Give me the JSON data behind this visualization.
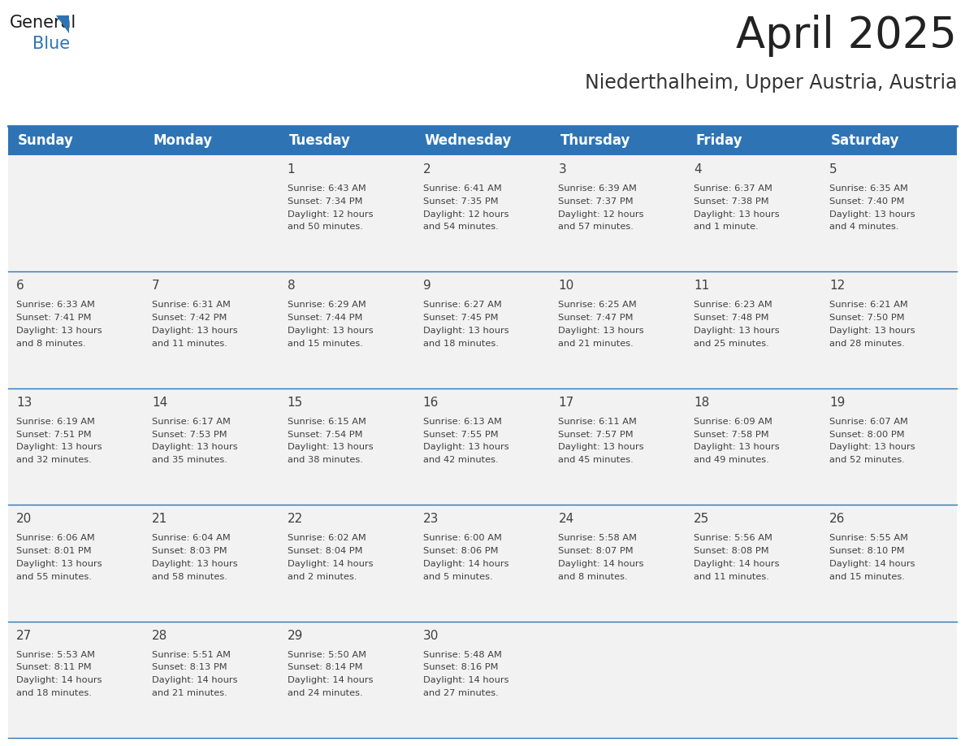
{
  "title": "April 2025",
  "subtitle": "Niederthalheim, Upper Austria, Austria",
  "header_color": "#2E74B5",
  "header_text_color": "#FFFFFF",
  "days_of_week": [
    "Sunday",
    "Monday",
    "Tuesday",
    "Wednesday",
    "Thursday",
    "Friday",
    "Saturday"
  ],
  "weeks": [
    [
      {
        "day": "",
        "sunrise": "",
        "sunset": "",
        "daylight": ""
      },
      {
        "day": "",
        "sunrise": "",
        "sunset": "",
        "daylight": ""
      },
      {
        "day": "1",
        "sunrise": "Sunrise: 6:43 AM",
        "sunset": "Sunset: 7:34 PM",
        "daylight": "Daylight: 12 hours\nand 50 minutes."
      },
      {
        "day": "2",
        "sunrise": "Sunrise: 6:41 AM",
        "sunset": "Sunset: 7:35 PM",
        "daylight": "Daylight: 12 hours\nand 54 minutes."
      },
      {
        "day": "3",
        "sunrise": "Sunrise: 6:39 AM",
        "sunset": "Sunset: 7:37 PM",
        "daylight": "Daylight: 12 hours\nand 57 minutes."
      },
      {
        "day": "4",
        "sunrise": "Sunrise: 6:37 AM",
        "sunset": "Sunset: 7:38 PM",
        "daylight": "Daylight: 13 hours\nand 1 minute."
      },
      {
        "day": "5",
        "sunrise": "Sunrise: 6:35 AM",
        "sunset": "Sunset: 7:40 PM",
        "daylight": "Daylight: 13 hours\nand 4 minutes."
      }
    ],
    [
      {
        "day": "6",
        "sunrise": "Sunrise: 6:33 AM",
        "sunset": "Sunset: 7:41 PM",
        "daylight": "Daylight: 13 hours\nand 8 minutes."
      },
      {
        "day": "7",
        "sunrise": "Sunrise: 6:31 AM",
        "sunset": "Sunset: 7:42 PM",
        "daylight": "Daylight: 13 hours\nand 11 minutes."
      },
      {
        "day": "8",
        "sunrise": "Sunrise: 6:29 AM",
        "sunset": "Sunset: 7:44 PM",
        "daylight": "Daylight: 13 hours\nand 15 minutes."
      },
      {
        "day": "9",
        "sunrise": "Sunrise: 6:27 AM",
        "sunset": "Sunset: 7:45 PM",
        "daylight": "Daylight: 13 hours\nand 18 minutes."
      },
      {
        "day": "10",
        "sunrise": "Sunrise: 6:25 AM",
        "sunset": "Sunset: 7:47 PM",
        "daylight": "Daylight: 13 hours\nand 21 minutes."
      },
      {
        "day": "11",
        "sunrise": "Sunrise: 6:23 AM",
        "sunset": "Sunset: 7:48 PM",
        "daylight": "Daylight: 13 hours\nand 25 minutes."
      },
      {
        "day": "12",
        "sunrise": "Sunrise: 6:21 AM",
        "sunset": "Sunset: 7:50 PM",
        "daylight": "Daylight: 13 hours\nand 28 minutes."
      }
    ],
    [
      {
        "day": "13",
        "sunrise": "Sunrise: 6:19 AM",
        "sunset": "Sunset: 7:51 PM",
        "daylight": "Daylight: 13 hours\nand 32 minutes."
      },
      {
        "day": "14",
        "sunrise": "Sunrise: 6:17 AM",
        "sunset": "Sunset: 7:53 PM",
        "daylight": "Daylight: 13 hours\nand 35 minutes."
      },
      {
        "day": "15",
        "sunrise": "Sunrise: 6:15 AM",
        "sunset": "Sunset: 7:54 PM",
        "daylight": "Daylight: 13 hours\nand 38 minutes."
      },
      {
        "day": "16",
        "sunrise": "Sunrise: 6:13 AM",
        "sunset": "Sunset: 7:55 PM",
        "daylight": "Daylight: 13 hours\nand 42 minutes."
      },
      {
        "day": "17",
        "sunrise": "Sunrise: 6:11 AM",
        "sunset": "Sunset: 7:57 PM",
        "daylight": "Daylight: 13 hours\nand 45 minutes."
      },
      {
        "day": "18",
        "sunrise": "Sunrise: 6:09 AM",
        "sunset": "Sunset: 7:58 PM",
        "daylight": "Daylight: 13 hours\nand 49 minutes."
      },
      {
        "day": "19",
        "sunrise": "Sunrise: 6:07 AM",
        "sunset": "Sunset: 8:00 PM",
        "daylight": "Daylight: 13 hours\nand 52 minutes."
      }
    ],
    [
      {
        "day": "20",
        "sunrise": "Sunrise: 6:06 AM",
        "sunset": "Sunset: 8:01 PM",
        "daylight": "Daylight: 13 hours\nand 55 minutes."
      },
      {
        "day": "21",
        "sunrise": "Sunrise: 6:04 AM",
        "sunset": "Sunset: 8:03 PM",
        "daylight": "Daylight: 13 hours\nand 58 minutes."
      },
      {
        "day": "22",
        "sunrise": "Sunrise: 6:02 AM",
        "sunset": "Sunset: 8:04 PM",
        "daylight": "Daylight: 14 hours\nand 2 minutes."
      },
      {
        "day": "23",
        "sunrise": "Sunrise: 6:00 AM",
        "sunset": "Sunset: 8:06 PM",
        "daylight": "Daylight: 14 hours\nand 5 minutes."
      },
      {
        "day": "24",
        "sunrise": "Sunrise: 5:58 AM",
        "sunset": "Sunset: 8:07 PM",
        "daylight": "Daylight: 14 hours\nand 8 minutes."
      },
      {
        "day": "25",
        "sunrise": "Sunrise: 5:56 AM",
        "sunset": "Sunset: 8:08 PM",
        "daylight": "Daylight: 14 hours\nand 11 minutes."
      },
      {
        "day": "26",
        "sunrise": "Sunrise: 5:55 AM",
        "sunset": "Sunset: 8:10 PM",
        "daylight": "Daylight: 14 hours\nand 15 minutes."
      }
    ],
    [
      {
        "day": "27",
        "sunrise": "Sunrise: 5:53 AM",
        "sunset": "Sunset: 8:11 PM",
        "daylight": "Daylight: 14 hours\nand 18 minutes."
      },
      {
        "day": "28",
        "sunrise": "Sunrise: 5:51 AM",
        "sunset": "Sunset: 8:13 PM",
        "daylight": "Daylight: 14 hours\nand 21 minutes."
      },
      {
        "day": "29",
        "sunrise": "Sunrise: 5:50 AM",
        "sunset": "Sunset: 8:14 PM",
        "daylight": "Daylight: 14 hours\nand 24 minutes."
      },
      {
        "day": "30",
        "sunrise": "Sunrise: 5:48 AM",
        "sunset": "Sunset: 8:16 PM",
        "daylight": "Daylight: 14 hours\nand 27 minutes."
      },
      {
        "day": "",
        "sunrise": "",
        "sunset": "",
        "daylight": ""
      },
      {
        "day": "",
        "sunrise": "",
        "sunset": "",
        "daylight": ""
      },
      {
        "day": "",
        "sunrise": "",
        "sunset": "",
        "daylight": ""
      }
    ]
  ],
  "cell_bg_color": "#F2F2F2",
  "grid_line_color": "#2E74B5",
  "text_color": "#404040",
  "font_size_title": 38,
  "font_size_subtitle": 17,
  "font_size_header": 12,
  "font_size_day_num": 11,
  "font_size_detail": 8.2,
  "logo_general_color": "#1a1a1a",
  "logo_blue_color": "#2E74B5"
}
